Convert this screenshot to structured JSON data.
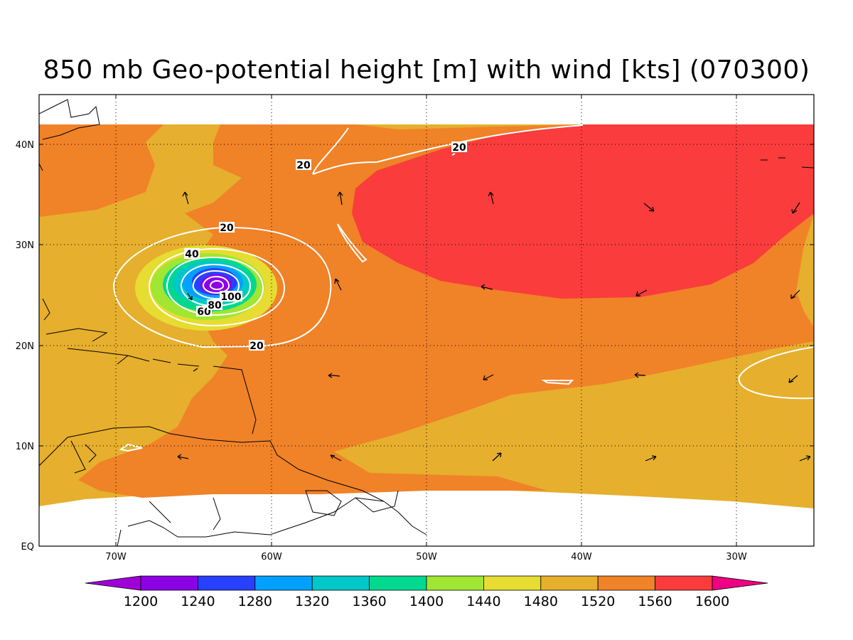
{
  "title": "850 mb Geo-potential height [m] with wind [kts] (070300)",
  "axes": {
    "x_ticks": [
      "70W",
      "60W",
      "50W",
      "40W",
      "30W"
    ],
    "y_ticks": [
      "40N",
      "30N",
      "20N",
      "10N",
      "EQ"
    ],
    "lon_range": [
      -75,
      -25
    ],
    "lat_range": [
      -1.5,
      45
    ]
  },
  "colorbar": {
    "levels": [
      "1200",
      "1240",
      "1280",
      "1320",
      "1360",
      "1400",
      "1440",
      "1480",
      "1520",
      "1560",
      "1600"
    ],
    "colors": [
      "#a000d8",
      "#8c00e6",
      "#2840ff",
      "#00a0ff",
      "#00c8c8",
      "#00d890",
      "#a0e632",
      "#e6dc32",
      "#e6af2d",
      "#f08228",
      "#fa3c3c",
      "#f00082"
    ]
  },
  "contour_labels": [
    "20",
    "20",
    "20",
    "20",
    "40",
    "60",
    "80",
    "100"
  ],
  "chart_data": {
    "type": "heatmap",
    "title": "850 mb Geo-potential height [m] with wind [kts] (070300)",
    "xlabel": "",
    "ylabel": "",
    "x_range": [
      "75W",
      "25W"
    ],
    "y_range": [
      "EQ",
      "45N"
    ],
    "levels": [
      1200,
      1240,
      1280,
      1320,
      1360,
      1400,
      1440,
      1480,
      1520,
      1560,
      1600
    ],
    "grid": true,
    "isotach_levels_kts": [
      20,
      40,
      60,
      80,
      100
    ]
  }
}
